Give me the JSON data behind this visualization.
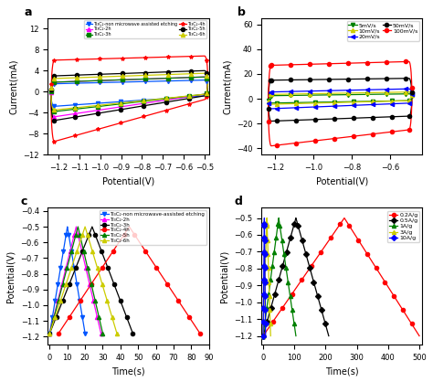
{
  "panel_a": {
    "title": "a",
    "xlabel": "Potential(V)",
    "ylabel": "Current(mA)",
    "xlim": [
      -1.25,
      -0.48
    ],
    "ylim": [
      -12,
      14
    ],
    "xticks": [
      -1.2,
      -1.1,
      -1.0,
      -0.9,
      -0.8,
      -0.7,
      -0.6,
      -0.5
    ],
    "yticks": [
      -12,
      -8,
      -4,
      0,
      4,
      8,
      12
    ],
    "series": [
      {
        "label": "Ti₃C₂-non microwave assisted etching",
        "color": "#0055FF",
        "marker": "v",
        "upper_l": 1.5,
        "upper_r": 2.2,
        "lower_l": -2.8,
        "lower_r": -0.8
      },
      {
        "label": "Ti₃C₂-2h",
        "color": "#FF00FF",
        "marker": "^",
        "upper_l": 1.8,
        "upper_r": 2.8,
        "lower_l": -4.8,
        "lower_r": -0.5
      },
      {
        "label": "Ti₃C₂-3h",
        "color": "#008000",
        "marker": "s",
        "upper_l": 1.8,
        "upper_r": 2.8,
        "lower_l": -3.8,
        "lower_r": -0.5
      },
      {
        "label": "Ti₃C₂-4h",
        "color": "#FF0000",
        "marker": "*",
        "upper_l": 6.0,
        "upper_r": 6.8,
        "lower_l": -9.5,
        "lower_r": -1.5
      },
      {
        "label": "Ti₃C₂-5h",
        "color": "#000000",
        "marker": "o",
        "upper_l": 3.0,
        "upper_r": 4.0,
        "lower_l": -5.5,
        "lower_r": -0.8
      },
      {
        "label": "Ti₃C₂-6h",
        "color": "#CCCC00",
        "marker": "^",
        "upper_l": 2.5,
        "upper_r": 3.5,
        "lower_l": -3.5,
        "lower_r": -0.5
      }
    ]
  },
  "panel_b": {
    "title": "b",
    "xlabel": "Potential(V)",
    "ylabel": "Current(mA)",
    "xlim": [
      -1.27,
      -0.43
    ],
    "ylim": [
      -45,
      65
    ],
    "xticks": [
      -1.2,
      -1.0,
      -0.8,
      -0.6
    ],
    "yticks": [
      -40,
      -20,
      0,
      20,
      40,
      60
    ],
    "series": [
      {
        "label": "5mV/s",
        "color": "#008000",
        "marker": "v",
        "upper_l": 2.5,
        "upper_r": 4.0,
        "lower_l": -3.5,
        "lower_r": -1.5
      },
      {
        "label": "10mV/s",
        "color": "#CCCC00",
        "marker": "^",
        "upper_l": 3.5,
        "upper_r": 5.5,
        "lower_l": -4.5,
        "lower_r": -1.5
      },
      {
        "label": "20mV/s",
        "color": "#0000FF",
        "marker": "<",
        "upper_l": 5.5,
        "upper_r": 8.0,
        "lower_l": -8.0,
        "lower_r": -3.5
      },
      {
        "label": "50mV/s",
        "color": "#000000",
        "marker": "o",
        "upper_l": 15.0,
        "upper_r": 16.5,
        "lower_l": -18.0,
        "lower_r": -14.0
      },
      {
        "label": "100mV/s",
        "color": "#FF0000",
        "marker": "o",
        "upper_l": 27.0,
        "upper_r": 30.0,
        "lower_l": -38.0,
        "lower_r": -25.0
      }
    ]
  },
  "panel_c": {
    "title": "c",
    "xlabel": "Time(s)",
    "ylabel": "Potential(V)",
    "xlim": [
      -1,
      90
    ],
    "ylim": [
      -1.25,
      -0.38
    ],
    "xticks": [
      0,
      10,
      20,
      30,
      40,
      50,
      60,
      70,
      80,
      90
    ],
    "yticks": [
      -1.2,
      -1.1,
      -1.0,
      -0.9,
      -0.8,
      -0.7,
      -0.6,
      -0.5,
      -0.4
    ],
    "series": [
      {
        "label": "Ti₃C₂-non microwave-assisted etching",
        "color": "#0055FF",
        "marker": "v",
        "t0": 0,
        "t_peak": 10,
        "t_end": 20,
        "v_base": -1.18,
        "v_peak": -0.5
      },
      {
        "label": "Ti₃C₂-2h",
        "color": "#FF00FF",
        "marker": "^",
        "t0": 0,
        "t_peak": 15,
        "t_end": 29,
        "v_base": -1.18,
        "v_peak": -0.5
      },
      {
        "label": "Ti₃C₂-3h",
        "color": "#000000",
        "marker": "o",
        "t0": 0,
        "t_peak": 24,
        "t_end": 47,
        "v_base": -1.18,
        "v_peak": -0.5
      },
      {
        "label": "Ti₃C₂-4h",
        "color": "#FF0000",
        "marker": "o",
        "t0": 5,
        "t_peak": 45,
        "t_end": 85,
        "v_base": -1.18,
        "v_peak": -0.5
      },
      {
        "label": "Ti₃C₂-5h",
        "color": "#008000",
        "marker": "^",
        "t0": 0,
        "t_peak": 16,
        "t_end": 30,
        "v_base": -1.18,
        "v_peak": -0.5
      },
      {
        "label": "Ti₃C₂-6h",
        "color": "#CCCC00",
        "marker": "^",
        "t0": 0,
        "t_peak": 20,
        "t_end": 38,
        "v_base": -1.18,
        "v_peak": -0.5
      }
    ]
  },
  "panel_d": {
    "title": "d",
    "xlabel": "Time(s)",
    "ylabel": "Potential(V)",
    "xlim": [
      -5,
      510
    ],
    "ylim": [
      -1.25,
      -0.44
    ],
    "xticks": [
      0,
      100,
      200,
      300,
      400,
      500
    ],
    "yticks": [
      -1.2,
      -1.1,
      -1.0,
      -0.9,
      -0.8,
      -0.7,
      -0.6,
      -0.5
    ],
    "series": [
      {
        "label": "0.2A/g",
        "color": "#FF0000",
        "marker": "o",
        "t0": 0,
        "t_peak": 260,
        "t_end": 500,
        "v_base": -1.2,
        "v_peak": -0.5
      },
      {
        "label": "0.5A/g",
        "color": "#000000",
        "marker": "D",
        "t0": 0,
        "t_peak": 105,
        "t_end": 210,
        "v_base": -1.2,
        "v_peak": -0.5
      },
      {
        "label": "1A/g",
        "color": "#008000",
        "marker": "^",
        "t0": 0,
        "t_peak": 50,
        "t_end": 105,
        "v_base": -1.2,
        "v_peak": -0.5
      },
      {
        "label": "3A/g",
        "color": "#CCCC00",
        "marker": "^",
        "t0": 0,
        "t_peak": 12,
        "t_end": 24,
        "v_base": -1.2,
        "v_peak": -0.5
      },
      {
        "label": "10A/g",
        "color": "#0000FF",
        "marker": "D",
        "t0": 0,
        "t_peak": 4,
        "t_end": 8,
        "v_base": -1.2,
        "v_peak": -0.5
      }
    ]
  }
}
